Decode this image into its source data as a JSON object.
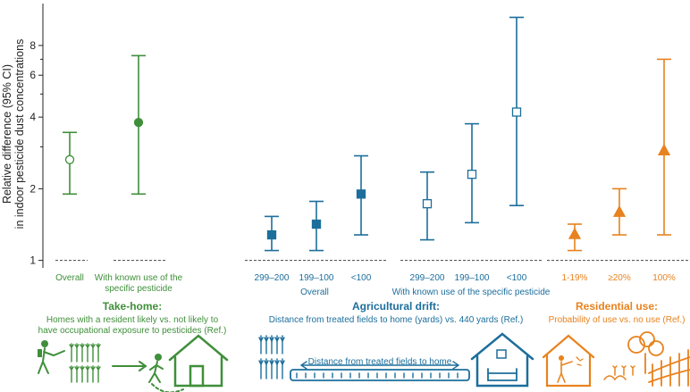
{
  "colors": {
    "take_home": "#3f8f3a",
    "drift": "#1c6e9c",
    "residential": "#e8821e",
    "axis": "#222222",
    "ref_line": "#444444"
  },
  "chart_data": {
    "type": "scatter",
    "yscale": "log",
    "ylabel_lines": [
      "Relative difference (95% CI)",
      "in indoor pesticide dust concentrations"
    ],
    "yticks": [
      1,
      2,
      4,
      6,
      8
    ],
    "ylim": [
      0.93,
      12
    ],
    "reference_value": 1,
    "points": [
      {
        "label": "Overall",
        "label_lines": [
          "Overall"
        ],
        "color": "take_home",
        "marker": "circle",
        "filled": false,
        "est": 2.65,
        "lo": 1.9,
        "hi": 3.45
      },
      {
        "label": "With known use of the specific pesticide",
        "label_lines": [
          "With known use of the",
          "specific pesticide"
        ],
        "color": "take_home",
        "marker": "circle",
        "filled": true,
        "est": 3.8,
        "lo": 1.9,
        "hi": 7.25
      },
      {
        "label": "299–200",
        "label_lines": [
          "299–200"
        ],
        "color": "drift",
        "marker": "square",
        "filled": true,
        "est": 1.28,
        "lo": 1.1,
        "hi": 1.53
      },
      {
        "label": "199–100",
        "label_lines": [
          "199–100"
        ],
        "color": "drift",
        "marker": "square",
        "filled": true,
        "est": 1.42,
        "lo": 1.1,
        "hi": 1.77
      },
      {
        "label": "<100",
        "label_lines": [
          "<100"
        ],
        "color": "drift",
        "marker": "square",
        "filled": true,
        "est": 1.9,
        "lo": 1.28,
        "hi": 2.75
      },
      {
        "label": "299–200",
        "label_lines": [
          "299–200"
        ],
        "color": "drift",
        "marker": "square",
        "filled": false,
        "est": 1.73,
        "lo": 1.22,
        "hi": 2.35
      },
      {
        "label": "199–100",
        "label_lines": [
          "199–100"
        ],
        "color": "drift",
        "marker": "square",
        "filled": false,
        "est": 2.3,
        "lo": 1.44,
        "hi": 3.75
      },
      {
        "label": "<100",
        "label_lines": [
          "<100"
        ],
        "color": "drift",
        "marker": "square",
        "filled": false,
        "est": 4.2,
        "lo": 1.7,
        "hi": 10.5
      },
      {
        "label": "1-19%",
        "label_lines": [
          "1-19%"
        ],
        "color": "residential",
        "marker": "triangle",
        "filled": true,
        "est": 1.29,
        "lo": 1.1,
        "hi": 1.42
      },
      {
        "label": "≥20%",
        "label_lines": [
          "≥20%"
        ],
        "color": "residential",
        "marker": "triangle",
        "filled": true,
        "est": 1.6,
        "lo": 1.28,
        "hi": 2.0
      },
      {
        "label": "100%",
        "label_lines": [
          "100%"
        ],
        "color": "residential",
        "marker": "triangle",
        "filled": true,
        "est": 2.9,
        "lo": 1.28,
        "hi": 7.0
      }
    ],
    "group_labels": [
      {
        "text": "Overall",
        "color": "drift"
      },
      {
        "text": "With known use of the specific pesticide",
        "color": "drift"
      }
    ]
  },
  "panels": [
    {
      "title": "Take-home:",
      "desc_lines": [
        "Homes with a resident likely vs. not likely to",
        "have occupational exposure to pesticides (Ref.)"
      ],
      "color": "take_home"
    },
    {
      "title": "Agricultural drift:",
      "desc_lines": [
        "Distance from treated fields to home (yards) vs. 440 yards (Ref.)"
      ],
      "color": "drift"
    },
    {
      "title": "Residential use:",
      "desc_lines": [
        "Probability of use vs. no use (Ref.)"
      ],
      "color": "residential"
    }
  ],
  "illustrations": {
    "take_home_icons": [
      "farmer-spraying-icon",
      "wheat-crop-icon",
      "walking-person-icon",
      "house-icon"
    ],
    "drift_icons": [
      "wheat-field-icon",
      "house-with-sofa-icon"
    ],
    "drift_distance_label": "Distance from treated fields to home",
    "residential_icons": [
      "house-spraying-icon",
      "tree-icon",
      "garden-icon",
      "fence-icon"
    ]
  }
}
